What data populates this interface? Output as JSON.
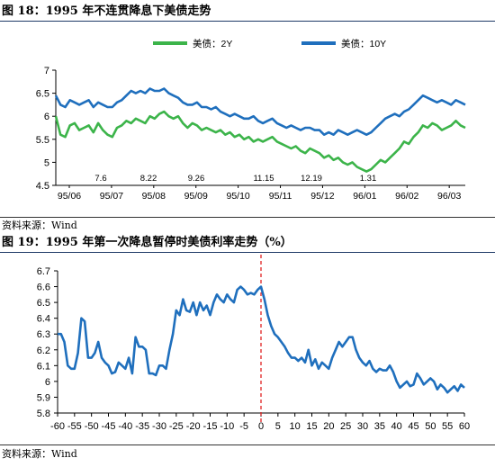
{
  "figure18": {
    "title": "图 18：1995 年不连贯降息下美债走势",
    "source": "资料来源：Wind",
    "chart_data": {
      "type": "line",
      "x_labels": [
        "95/06",
        "95/07",
        "95/08",
        "95/09",
        "95/10",
        "95/11",
        "95/12",
        "96/01",
        "96/02",
        "96/03"
      ],
      "annotations": [
        "7.6",
        "8.22",
        "9.26",
        "11.15",
        "12.19",
        "1.31"
      ],
      "ylim": [
        4.5,
        7
      ],
      "y_ticks": [
        "4.5",
        "5",
        "5.5",
        "6",
        "6.5",
        "7"
      ],
      "legend_position": "top",
      "series": [
        {
          "name": "美债：2Y",
          "color": "#3cb44a",
          "values": [
            6.0,
            5.6,
            5.55,
            5.8,
            5.85,
            5.7,
            5.75,
            5.8,
            5.65,
            5.85,
            5.7,
            5.6,
            5.55,
            5.75,
            5.8,
            5.9,
            5.85,
            5.95,
            5.9,
            5.85,
            6.0,
            5.95,
            6.05,
            6.1,
            6.0,
            5.95,
            6.0,
            5.85,
            5.75,
            5.85,
            5.8,
            5.7,
            5.75,
            5.7,
            5.65,
            5.7,
            5.6,
            5.65,
            5.55,
            5.6,
            5.5,
            5.55,
            5.45,
            5.5,
            5.45,
            5.5,
            5.55,
            5.45,
            5.4,
            5.35,
            5.3,
            5.35,
            5.25,
            5.2,
            5.3,
            5.25,
            5.2,
            5.1,
            5.15,
            5.05,
            5.1,
            5.0,
            4.95,
            5.0,
            4.9,
            4.85,
            4.8,
            4.85,
            4.95,
            5.05,
            5.0,
            5.1,
            5.2,
            5.3,
            5.45,
            5.4,
            5.55,
            5.65,
            5.8,
            5.75,
            5.85,
            5.8,
            5.7,
            5.75,
            5.8,
            5.9,
            5.8,
            5.75
          ]
        },
        {
          "name": "美债：10Y",
          "color": "#1f6fbd",
          "values": [
            6.45,
            6.25,
            6.2,
            6.35,
            6.3,
            6.25,
            6.3,
            6.35,
            6.2,
            6.3,
            6.25,
            6.2,
            6.2,
            6.3,
            6.35,
            6.45,
            6.55,
            6.5,
            6.55,
            6.5,
            6.6,
            6.55,
            6.55,
            6.6,
            6.5,
            6.45,
            6.4,
            6.3,
            6.25,
            6.25,
            6.3,
            6.2,
            6.2,
            6.15,
            6.2,
            6.1,
            6.05,
            6.0,
            6.05,
            6.0,
            5.95,
            5.95,
            6.0,
            5.9,
            5.85,
            5.9,
            5.95,
            5.85,
            5.8,
            5.75,
            5.8,
            5.75,
            5.7,
            5.75,
            5.75,
            5.7,
            5.7,
            5.6,
            5.65,
            5.6,
            5.7,
            5.65,
            5.6,
            5.65,
            5.7,
            5.65,
            5.6,
            5.65,
            5.75,
            5.85,
            5.95,
            6.0,
            6.05,
            6.0,
            6.1,
            6.15,
            6.25,
            6.35,
            6.45,
            6.4,
            6.35,
            6.3,
            6.35,
            6.3,
            6.25,
            6.35,
            6.3,
            6.25
          ]
        }
      ]
    }
  },
  "figure19": {
    "title": "图 19：1995 年第一次降息暂停时美债利率走势（%）",
    "source": "资料来源：Wind",
    "chart_data": {
      "type": "line",
      "xlim": [
        -60,
        60
      ],
      "x_ticks": [
        "-60",
        "-55",
        "-50",
        "-45",
        "-40",
        "-35",
        "-30",
        "-25",
        "-20",
        "-15",
        "-10",
        "-5",
        "0",
        "5",
        "10",
        "15",
        "20",
        "25",
        "30",
        "35",
        "40",
        "45",
        "50",
        "55",
        "60"
      ],
      "ylim": [
        5.8,
        6.7
      ],
      "y_ticks": [
        "5.8",
        "5.9",
        "6",
        "6.1",
        "6.2",
        "6.3",
        "6.4",
        "6.5",
        "6.6",
        "6.7"
      ],
      "reference_line_x": 0,
      "series": [
        {
          "color": "#1f6fbd",
          "x": [
            -60,
            -59,
            -58,
            -57,
            -56,
            -55,
            -54,
            -53,
            -52,
            -51,
            -50,
            -49,
            -48,
            -47,
            -46,
            -45,
            -44,
            -43,
            -42,
            -41,
            -40,
            -39,
            -38,
            -37,
            -36,
            -35,
            -34,
            -33,
            -32,
            -31,
            -30,
            -29,
            -28,
            -27,
            -26,
            -25,
            -24,
            -23,
            -22,
            -21,
            -20,
            -19,
            -18,
            -17,
            -16,
            -15,
            -14,
            -13,
            -12,
            -11,
            -10,
            -9,
            -8,
            -7,
            -6,
            -5,
            -4,
            -3,
            -2,
            -1,
            0,
            1,
            2,
            3,
            4,
            5,
            6,
            7,
            8,
            9,
            10,
            11,
            12,
            13,
            14,
            15,
            16,
            17,
            18,
            19,
            20,
            21,
            22,
            23,
            24,
            25,
            26,
            27,
            28,
            29,
            30,
            31,
            32,
            33,
            34,
            35,
            36,
            37,
            38,
            39,
            40,
            41,
            42,
            43,
            44,
            45,
            46,
            47,
            48,
            49,
            50,
            51,
            52,
            53,
            54,
            55,
            56,
            57,
            58,
            59,
            60
          ],
          "y": [
            6.3,
            6.3,
            6.25,
            6.1,
            6.08,
            6.08,
            6.18,
            6.4,
            6.38,
            6.15,
            6.15,
            6.18,
            6.25,
            6.15,
            6.12,
            6.1,
            6.05,
            6.06,
            6.12,
            6.1,
            6.08,
            6.15,
            6.05,
            6.28,
            6.22,
            6.22,
            6.2,
            6.05,
            6.05,
            6.04,
            6.1,
            6.1,
            6.08,
            6.2,
            6.3,
            6.45,
            6.42,
            6.52,
            6.45,
            6.44,
            6.5,
            6.42,
            6.5,
            6.45,
            6.48,
            6.42,
            6.5,
            6.55,
            6.52,
            6.5,
            6.55,
            6.52,
            6.5,
            6.58,
            6.6,
            6.58,
            6.55,
            6.56,
            6.55,
            6.58,
            6.6,
            6.52,
            6.42,
            6.35,
            6.3,
            6.28,
            6.25,
            6.22,
            6.18,
            6.15,
            6.15,
            6.13,
            6.15,
            6.12,
            6.2,
            6.1,
            6.14,
            6.08,
            6.12,
            6.1,
            6.08,
            6.15,
            6.2,
            6.25,
            6.22,
            6.25,
            6.28,
            6.28,
            6.2,
            6.15,
            6.12,
            6.1,
            6.13,
            6.08,
            6.06,
            6.08,
            6.07,
            6.07,
            6.1,
            6.06,
            6.0,
            5.96,
            5.98,
            6.0,
            5.97,
            5.98,
            6.05,
            6.02,
            5.98,
            6.0,
            6.02,
            6.0,
            5.95,
            5.98,
            5.96,
            5.93,
            5.95,
            5.97,
            5.94,
            5.98,
            5.96
          ]
        }
      ]
    }
  }
}
